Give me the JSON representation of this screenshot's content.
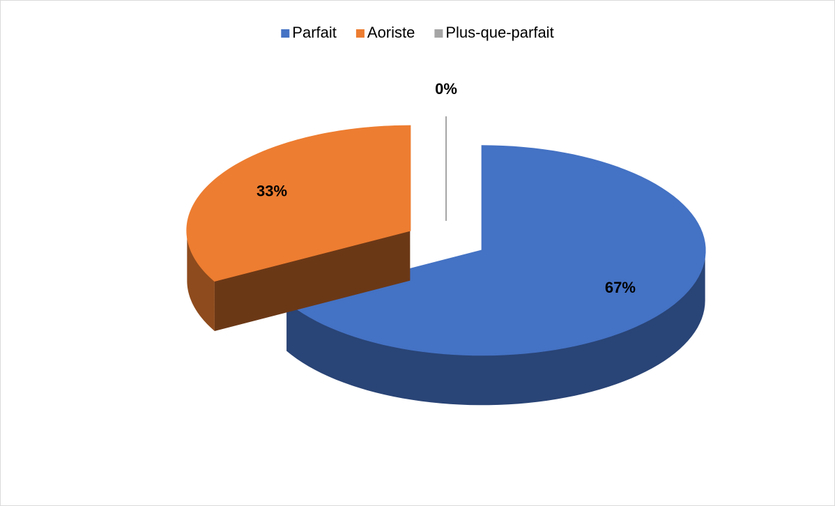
{
  "chart_data": {
    "type": "pie",
    "categories": [
      "Parfait",
      "Aoriste",
      "Plus-que-parfait"
    ],
    "values": [
      67,
      33,
      0
    ],
    "value_labels": [
      "67%",
      "33%",
      "0%"
    ],
    "colors": [
      "#4472c4",
      "#ed7d31",
      "#a5a5a5"
    ],
    "legend": "top"
  }
}
